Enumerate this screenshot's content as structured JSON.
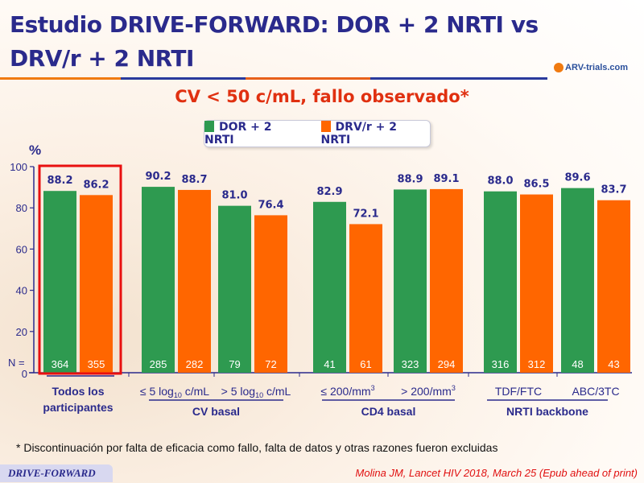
{
  "title": "Estudio DRIVE-FORWARD: DOR + 2 NRTI vs DRV/r + 2 NRTI",
  "logo_text": "ARV-trials.com",
  "subtitle": "CV < 50 c/mL, fallo observado*",
  "footnote": "* Discontinuación por falta de eficacia como fallo, falta de datos y otras razones fueron excluidas",
  "footer_tag": "DRIVE-FORWARD",
  "citation": "Molina JM, Lancet HIV 2018, March 25 (Epub ahead of print)",
  "colors": {
    "dor": "#2e9a50",
    "drv": "#ff6600",
    "text": "#2a2a8c",
    "highlight": "#e81010"
  },
  "chart_data": {
    "type": "bar",
    "title": "CV < 50 c/mL, fallo observado*",
    "ylabel": "%",
    "ylim": [
      0,
      100
    ],
    "yticks": [
      0,
      20,
      40,
      60,
      80,
      100
    ],
    "n_label": "N =",
    "legend": [
      "DOR + 2 NRTI",
      "DRV/r + 2 NRTI"
    ],
    "legend_position": "top-center",
    "categories": [
      "Todos los participantes",
      "≤ 5 log10 c/mL",
      "> 5 log10 c/mL",
      "≤ 200/mm3",
      "> 200/mm3",
      "TDF/FTC",
      "ABC/3TC"
    ],
    "groups": [
      {
        "label": "",
        "members": [
          0
        ]
      },
      {
        "label": "CV basal",
        "members": [
          1,
          2
        ]
      },
      {
        "label": "CD4 basal",
        "members": [
          3,
          4
        ]
      },
      {
        "label": "NRTI backbone",
        "members": [
          5,
          6
        ]
      }
    ],
    "series": [
      {
        "name": "DOR + 2 NRTI",
        "values": [
          88.2,
          90.2,
          81.0,
          82.9,
          88.9,
          88.0,
          89.6
        ],
        "n": [
          364,
          285,
          79,
          41,
          323,
          316,
          48
        ]
      },
      {
        "name": "DRV/r + 2 NRTI",
        "values": [
          86.2,
          88.7,
          76.4,
          72.1,
          89.1,
          86.5,
          83.7
        ],
        "n": [
          355,
          282,
          72,
          61,
          294,
          312,
          43
        ]
      }
    ],
    "highlighted_category": "Todos los participantes"
  }
}
